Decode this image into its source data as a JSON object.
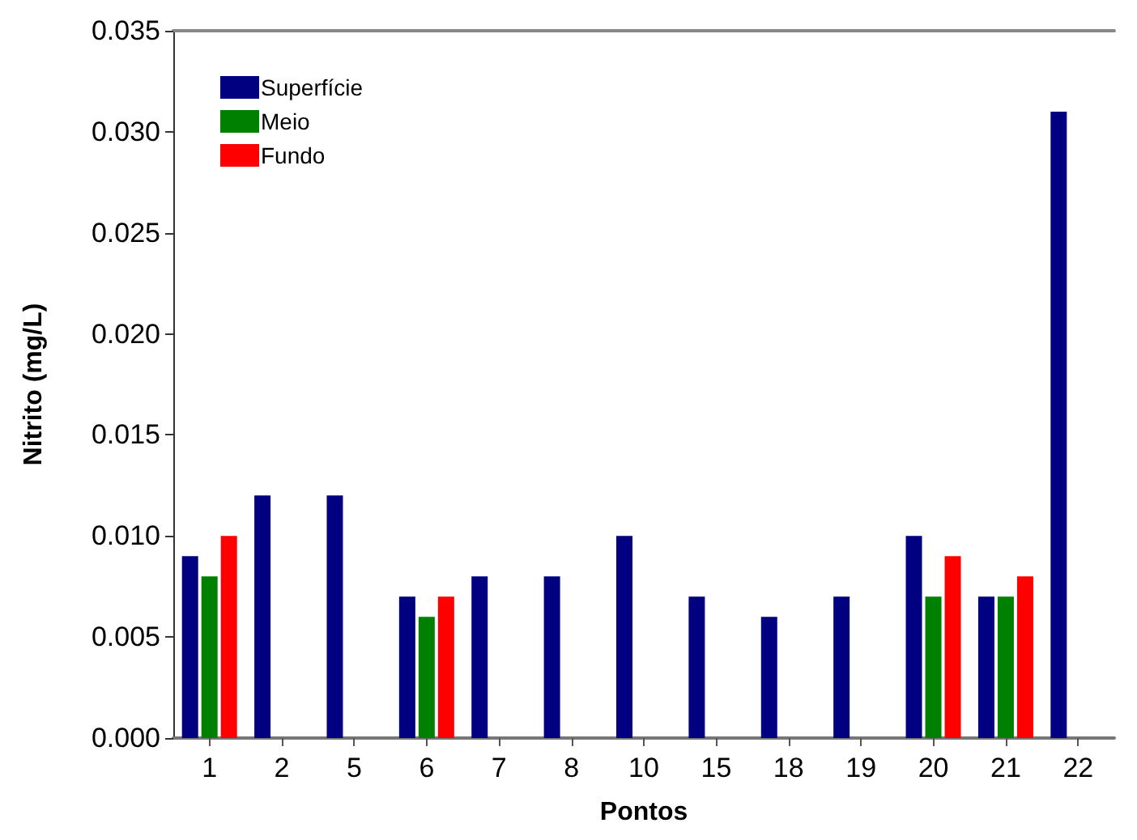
{
  "chart_data": {
    "type": "bar",
    "xlabel": "Pontos",
    "ylabel": "Nitrito (mg/L)",
    "categories": [
      "1",
      "2",
      "5",
      "6",
      "7",
      "8",
      "10",
      "15",
      "18",
      "19",
      "20",
      "21",
      "22"
    ],
    "series": [
      {
        "name": "Superfície",
        "color": "#000080",
        "values": [
          0.009,
          0.012,
          0.012,
          0.007,
          0.008,
          0.008,
          0.01,
          0.007,
          0.006,
          0.007,
          0.01,
          0.007,
          0.031
        ]
      },
      {
        "name": "Meio",
        "color": "#008000",
        "values": [
          0.008,
          null,
          null,
          0.006,
          null,
          null,
          null,
          null,
          null,
          null,
          0.007,
          0.007,
          null
        ]
      },
      {
        "name": "Fundo",
        "color": "#ff0000",
        "values": [
          0.01,
          null,
          null,
          0.007,
          null,
          null,
          null,
          null,
          null,
          null,
          0.009,
          0.008,
          null
        ]
      }
    ],
    "ylim": [
      0,
      0.035
    ],
    "yticks": [
      {
        "value": 0,
        "label": "0.000"
      },
      {
        "value": 0.005,
        "label": "0.005"
      },
      {
        "value": 0.01,
        "label": "0.010"
      },
      {
        "value": 0.015,
        "label": "0.015"
      },
      {
        "value": 0.02,
        "label": "0.020"
      },
      {
        "value": 0.025,
        "label": "0.025"
      },
      {
        "value": 0.03,
        "label": "0.030"
      },
      {
        "value": 0.035,
        "label": "0.035"
      }
    ],
    "grid": false,
    "legend": "top left"
  }
}
